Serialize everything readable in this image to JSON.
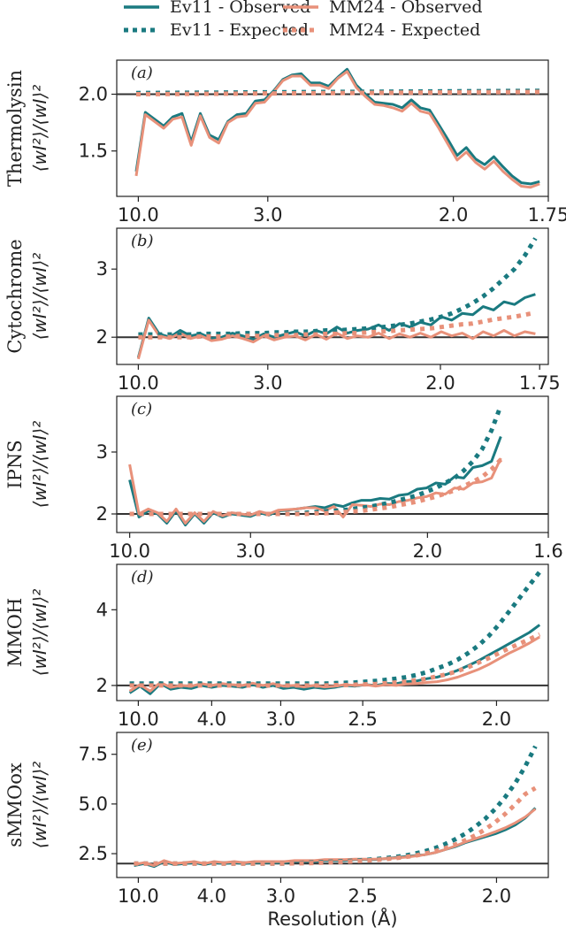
{
  "chart_data": {
    "type": "line",
    "xlabel": "Resolution (Å)",
    "ylabel_formula": "⟨wI²⟩/⟨wI⟩²",
    "colors": {
      "ev11": "#1a7a80",
      "mm24": "#e8917a",
      "reference": "#333333"
    },
    "legend": [
      {
        "name": "Ev11 - Observed",
        "series": "ev11",
        "style": "solid"
      },
      {
        "name": "MM24 - Observed",
        "series": "mm24",
        "style": "solid"
      },
      {
        "name": "Ev11 - Expected",
        "series": "ev11",
        "style": "dotted"
      },
      {
        "name": "MM24 - Expected",
        "series": "mm24",
        "style": "dotted"
      }
    ],
    "panels": [
      {
        "tag": "(a)",
        "ylabel": "Thermolysin",
        "xticks": [
          "10.0",
          "3.0",
          "2.0",
          "1.75"
        ],
        "yticks": [
          "1.5",
          "2.0"
        ],
        "ylim": [
          1.1,
          2.3
        ],
        "xlim": [
          0,
          1
        ],
        "reference": 2.0,
        "series": [
          {
            "name": "Ev11 - Observed",
            "values": [
              1.32,
              1.84,
              1.78,
              1.72,
              1.8,
              1.83,
              1.58,
              1.83,
              1.64,
              1.6,
              1.76,
              1.82,
              1.83,
              1.94,
              1.95,
              2.03,
              2.13,
              2.17,
              2.18,
              2.1,
              2.1,
              2.07,
              2.15,
              2.22,
              2.08,
              2.0,
              1.93,
              1.92,
              1.91,
              1.88,
              1.95,
              1.88,
              1.86,
              1.73,
              1.6,
              1.46,
              1.53,
              1.43,
              1.38,
              1.45,
              1.36,
              1.28,
              1.22,
              1.21,
              1.23
            ]
          },
          {
            "name": "MM24 - Observed",
            "values": [
              1.28,
              1.82,
              1.76,
              1.7,
              1.78,
              1.8,
              1.55,
              1.81,
              1.62,
              1.57,
              1.75,
              1.8,
              1.81,
              1.92,
              1.93,
              2.02,
              2.12,
              2.16,
              2.16,
              2.08,
              2.08,
              2.05,
              2.14,
              2.2,
              2.06,
              1.98,
              1.91,
              1.9,
              1.88,
              1.85,
              1.92,
              1.85,
              1.83,
              1.7,
              1.56,
              1.42,
              1.49,
              1.4,
              1.34,
              1.41,
              1.32,
              1.25,
              1.19,
              1.18,
              1.21
            ]
          },
          {
            "name": "Ev11 - Expected",
            "x": [
              0,
              1
            ],
            "values": [
              2.01,
              2.03
            ]
          },
          {
            "name": "MM24 - Expected",
            "x": [
              0,
              1
            ],
            "values": [
              2.0,
              2.02
            ]
          }
        ]
      },
      {
        "tag": "(b)",
        "ylabel": "Cytochrome",
        "xticks": [
          "10.0",
          "3.0",
          "2.0",
          "1.75"
        ],
        "yticks": [
          "2",
          "3"
        ],
        "ylim": [
          1.6,
          3.6
        ],
        "xlim": [
          0,
          1
        ],
        "reference": 2.0,
        "series": [
          {
            "name": "Ev11 - Observed",
            "values": [
              1.7,
              2.28,
              2.05,
              2.0,
              2.1,
              2.02,
              2.05,
              1.98,
              2.0,
              2.06,
              2.02,
              1.97,
              2.05,
              2.0,
              2.04,
              2.08,
              2.02,
              2.1,
              2.05,
              2.15,
              2.06,
              2.1,
              2.12,
              2.18,
              2.1,
              2.2,
              2.15,
              2.22,
              2.18,
              2.3,
              2.25,
              2.35,
              2.33,
              2.45,
              2.4,
              2.52,
              2.48,
              2.58,
              2.63
            ]
          },
          {
            "name": "MM24 - Observed",
            "values": [
              1.68,
              2.25,
              2.02,
              1.98,
              2.06,
              1.98,
              2.02,
              1.95,
              1.97,
              2.02,
              1.98,
              1.93,
              2.02,
              1.96,
              2.0,
              2.02,
              1.96,
              2.04,
              1.97,
              2.06,
              1.98,
              2.02,
              2.0,
              2.06,
              1.98,
              2.05,
              2.0,
              2.06,
              2.0,
              2.08,
              2.02,
              2.06,
              1.98,
              2.08,
              2.02,
              2.1,
              2.02,
              2.08,
              2.05
            ]
          },
          {
            "name": "Ev11 - Expected",
            "values": [
              2.04,
              2.04,
              2.04,
              2.04,
              2.04,
              2.04,
              2.05,
              2.05,
              2.05,
              2.05,
              2.06,
              2.06,
              2.06,
              2.07,
              2.07,
              2.08,
              2.08,
              2.09,
              2.1,
              2.1,
              2.11,
              2.12,
              2.13,
              2.14,
              2.16,
              2.18,
              2.2,
              2.23,
              2.26,
              2.3,
              2.35,
              2.42,
              2.5,
              2.6,
              2.72,
              2.86,
              3.0,
              3.2,
              3.45
            ]
          },
          {
            "name": "MM24 - Expected",
            "values": [
              2.0,
              2.0,
              2.0,
              2.0,
              2.0,
              2.0,
              2.01,
              2.01,
              2.01,
              2.01,
              2.02,
              2.02,
              2.02,
              2.03,
              2.03,
              2.03,
              2.04,
              2.04,
              2.05,
              2.05,
              2.06,
              2.06,
              2.07,
              2.08,
              2.09,
              2.1,
              2.11,
              2.12,
              2.13,
              2.15,
              2.17,
              2.19,
              2.2,
              2.23,
              2.26,
              2.28,
              2.3,
              2.33,
              2.36
            ]
          }
        ]
      },
      {
        "tag": "(c)",
        "ylabel": "IPNS",
        "xticks": [
          "10.0",
          "3.0",
          "2.0",
          "1.6"
        ],
        "yticks": [
          "2",
          "3"
        ],
        "ylim": [
          1.7,
          3.9
        ],
        "xlim": [
          0,
          1
        ],
        "reference": 2.0,
        "series": [
          {
            "name": "Ev11 - Observed",
            "x_end": 0.9,
            "values": [
              2.55,
              1.95,
              2.05,
              2.0,
              1.85,
              2.05,
              1.82,
              2.0,
              1.85,
              2.02,
              1.95,
              2.0,
              1.98,
              1.96,
              2.02,
              1.98,
              2.05,
              2.06,
              2.08,
              2.1,
              2.12,
              2.1,
              2.15,
              2.12,
              2.18,
              2.22,
              2.22,
              2.25,
              2.24,
              2.3,
              2.32,
              2.4,
              2.42,
              2.5,
              2.48,
              2.6,
              2.58,
              2.75,
              2.78,
              2.85,
              3.25
            ]
          },
          {
            "name": "MM24 - Observed",
            "x_end": 0.9,
            "values": [
              2.8,
              2.0,
              2.08,
              2.02,
              1.88,
              2.08,
              1.85,
              2.02,
              1.88,
              2.04,
              1.97,
              2.02,
              2.0,
              1.98,
              2.04,
              2.0,
              2.06,
              2.07,
              2.08,
              2.1,
              2.1,
              2.05,
              2.12,
              1.95,
              2.15,
              2.14,
              2.12,
              2.16,
              2.15,
              2.2,
              2.22,
              2.26,
              2.28,
              2.34,
              2.32,
              2.42,
              2.4,
              2.5,
              2.52,
              2.58,
              2.9
            ]
          },
          {
            "name": "Ev11 - Expected",
            "x_end": 0.9,
            "values": [
              2.0,
              2.0,
              2.0,
              2.0,
              2.0,
              2.0,
              2.0,
              2.0,
              2.0,
              2.0,
              2.0,
              2.0,
              2.0,
              2.0,
              2.0,
              2.0,
              2.0,
              2.0,
              2.01,
              2.02,
              2.03,
              2.04,
              2.05,
              2.06,
              2.08,
              2.1,
              2.12,
              2.15,
              2.18,
              2.22,
              2.26,
              2.3,
              2.36,
              2.42,
              2.5,
              2.58,
              2.7,
              2.85,
              3.05,
              3.35,
              3.75
            ]
          },
          {
            "name": "MM24 - Expected",
            "x_end": 0.9,
            "values": [
              2.0,
              2.0,
              2.0,
              2.0,
              2.0,
              2.0,
              2.0,
              2.0,
              2.0,
              2.0,
              2.0,
              2.0,
              2.0,
              2.0,
              2.0,
              2.0,
              2.0,
              2.0,
              2.0,
              2.0,
              2.01,
              2.01,
              2.02,
              2.03,
              2.04,
              2.05,
              2.07,
              2.09,
              2.11,
              2.14,
              2.17,
              2.2,
              2.24,
              2.28,
              2.33,
              2.38,
              2.45,
              2.52,
              2.6,
              2.72,
              2.88
            ]
          }
        ]
      },
      {
        "tag": "(d)",
        "ylabel": "MMOH",
        "xticks": [
          "10.0",
          "4.0",
          "3.0",
          "2.5",
          "2.0"
        ],
        "yticks": [
          "2",
          "4"
        ],
        "ylim": [
          1.6,
          5.2
        ],
        "xlim": [
          0,
          1
        ],
        "reference": 2.0,
        "series": [
          {
            "name": "Ev11 - Observed",
            "values": [
              1.8,
              1.98,
              1.78,
              2.05,
              1.9,
              1.95,
              1.92,
              2.0,
              1.95,
              2.0,
              1.98,
              1.95,
              2.02,
              1.95,
              2.0,
              1.92,
              1.95,
              1.9,
              1.95,
              1.92,
              1.95,
              2.0,
              1.98,
              2.02,
              2.0,
              2.05,
              2.05,
              2.1,
              2.12,
              2.18,
              2.22,
              2.3,
              2.4,
              2.52,
              2.65,
              2.8,
              2.95,
              3.1,
              3.25,
              3.4,
              3.6
            ]
          },
          {
            "name": "MM24 - Observed",
            "values": [
              1.85,
              2.02,
              1.85,
              2.08,
              1.95,
              2.0,
              1.98,
              2.05,
              2.0,
              2.05,
              2.02,
              2.0,
              2.06,
              2.0,
              2.05,
              1.98,
              2.0,
              1.96,
              2.0,
              1.96,
              1.98,
              2.02,
              2.0,
              2.02,
              1.98,
              2.02,
              2.0,
              2.04,
              2.05,
              2.08,
              2.1,
              2.15,
              2.22,
              2.32,
              2.42,
              2.55,
              2.7,
              2.85,
              2.98,
              3.12,
              3.28
            ]
          },
          {
            "name": "Ev11 - Expected",
            "values": [
              2.05,
              2.05,
              2.05,
              2.05,
              2.05,
              2.05,
              2.05,
              2.05,
              2.05,
              2.05,
              2.05,
              2.05,
              2.05,
              2.05,
              2.05,
              2.05,
              2.05,
              2.05,
              2.05,
              2.05,
              2.06,
              2.07,
              2.08,
              2.1,
              2.12,
              2.15,
              2.18,
              2.22,
              2.28,
              2.35,
              2.45,
              2.55,
              2.68,
              2.85,
              3.05,
              3.3,
              3.6,
              3.95,
              4.3,
              4.65,
              5.0
            ]
          },
          {
            "name": "MM24 - Expected",
            "values": [
              2.0,
              2.0,
              2.0,
              2.0,
              2.0,
              2.0,
              2.0,
              2.0,
              2.0,
              2.0,
              2.0,
              2.0,
              2.0,
              2.0,
              2.0,
              2.0,
              2.0,
              2.0,
              2.0,
              2.0,
              2.01,
              2.01,
              2.02,
              2.03,
              2.04,
              2.06,
              2.08,
              2.1,
              2.14,
              2.18,
              2.24,
              2.3,
              2.38,
              2.48,
              2.6,
              2.72,
              2.85,
              2.98,
              3.1,
              3.22,
              3.35
            ]
          }
        ]
      },
      {
        "tag": "(e)",
        "ylabel": "sMMOox",
        "xticks": [
          "10.0",
          "4.0",
          "3.0",
          "2.5",
          "2.0"
        ],
        "yticks": [
          "2.5",
          "5.0",
          "7.5"
        ],
        "ylim": [
          1.3,
          8.6
        ],
        "xlim": [
          0,
          1
        ],
        "reference": 2.0,
        "series": [
          {
            "name": "Ev11 - Observed",
            "values": [
              1.9,
              2.0,
              1.85,
              2.1,
              1.95,
              2.0,
              2.05,
              1.95,
              2.05,
              2.0,
              2.05,
              2.0,
              2.05,
              2.05,
              2.05,
              2.05,
              2.1,
              2.1,
              2.1,
              2.15,
              2.15,
              2.15,
              2.2,
              2.2,
              2.2,
              2.25,
              2.3,
              2.35,
              2.4,
              2.45,
              2.55,
              2.7,
              2.85,
              3.05,
              3.2,
              3.35,
              3.5,
              3.7,
              3.95,
              4.3,
              4.8
            ]
          },
          {
            "name": "MM24 - Observed",
            "values": [
              1.95,
              2.05,
              1.9,
              2.15,
              2.0,
              2.05,
              2.1,
              2.0,
              2.1,
              2.05,
              2.1,
              2.05,
              2.1,
              2.1,
              2.1,
              2.1,
              2.15,
              2.15,
              2.15,
              2.2,
              2.2,
              2.2,
              2.22,
              2.22,
              2.22,
              2.25,
              2.28,
              2.32,
              2.38,
              2.45,
              2.55,
              2.7,
              2.88,
              3.08,
              3.25,
              3.42,
              3.6,
              3.8,
              4.05,
              4.35,
              4.75
            ]
          },
          {
            "name": "Ev11 - Expected",
            "values": [
              2.0,
              2.0,
              2.0,
              2.0,
              2.0,
              2.0,
              2.0,
              2.0,
              2.0,
              2.0,
              2.0,
              2.0,
              2.0,
              2.0,
              2.0,
              2.0,
              2.02,
              2.04,
              2.06,
              2.08,
              2.1,
              2.12,
              2.15,
              2.18,
              2.22,
              2.27,
              2.33,
              2.4,
              2.5,
              2.62,
              2.78,
              2.98,
              3.22,
              3.5,
              3.85,
              4.25,
              4.75,
              5.35,
              6.05,
              6.9,
              7.9
            ]
          },
          {
            "name": "MM24 - Expected",
            "values": [
              2.0,
              2.0,
              2.0,
              2.0,
              2.0,
              2.0,
              2.0,
              2.0,
              2.0,
              2.0,
              2.0,
              2.0,
              2.0,
              2.0,
              2.0,
              2.0,
              2.01,
              2.02,
              2.03,
              2.05,
              2.07,
              2.09,
              2.12,
              2.15,
              2.18,
              2.22,
              2.27,
              2.33,
              2.4,
              2.5,
              2.62,
              2.77,
              2.95,
              3.17,
              3.42,
              3.72,
              4.08,
              4.5,
              4.98,
              5.5,
              5.8
            ]
          }
        ]
      }
    ]
  }
}
